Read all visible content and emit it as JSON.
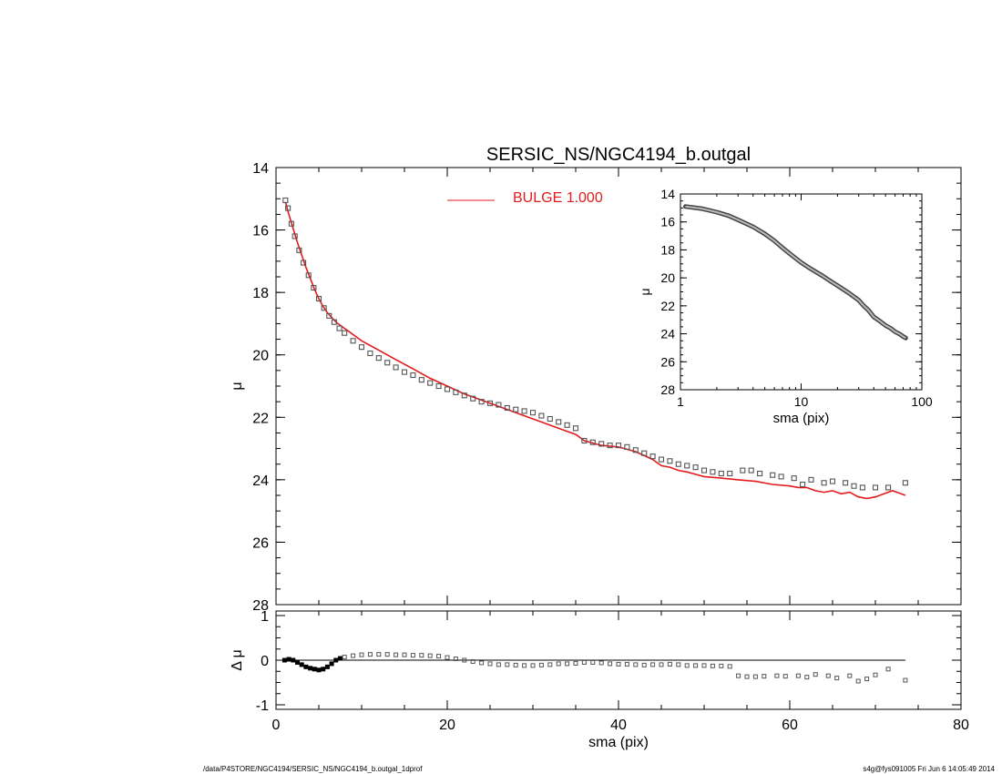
{
  "footer": {
    "left": "/data/P4STORE/NGC4194/SERSIC_NS/NGC4194_b.outgal_1dprof",
    "right": "s4g@fys091005  Fri Jun  6 14:05:49 2014"
  },
  "chart_data": [
    {
      "id": "main",
      "type": "scatter",
      "title": "SERSIC_NS/NGC4194_b.outgal",
      "xlabel": "",
      "ylabel": "μ",
      "xlim": [
        0,
        80
      ],
      "ylim": [
        28,
        14
      ],
      "y_inverted": true,
      "xticks": [
        0,
        20,
        40,
        60,
        80
      ],
      "yticks": [
        14,
        16,
        18,
        20,
        22,
        24,
        26,
        28
      ],
      "ytick_labels": [
        "14",
        "16",
        "18",
        "20",
        "22",
        "24",
        "26",
        "28"
      ],
      "legend": {
        "placement": "top-center",
        "entries": [
          {
            "label": "BULGE  1.000",
            "color": "#e41a1c"
          }
        ]
      },
      "colors": {
        "data": "#555555",
        "model": "#e41a1c"
      },
      "series": [
        {
          "name": "",
          "kind": "points",
          "x": [
            1.1,
            1.4,
            1.8,
            2.2,
            2.7,
            3.2,
            3.8,
            4.4,
            5.0,
            5.6,
            6.2,
            6.8,
            7.4,
            8.0,
            9.0,
            10.0,
            11.0,
            12.0,
            13.0,
            14.0,
            15.0,
            16.0,
            17.0,
            18.0,
            19.0,
            20.0,
            21.0,
            22.0,
            23.0,
            24.0,
            25.0,
            26.0,
            27.0,
            28.0,
            29.0,
            30.0,
            31.0,
            32.0,
            33.0,
            34.0,
            35.0,
            36.0,
            37.0,
            38.0,
            39.0,
            40.0,
            41.0,
            42.0,
            43.0,
            44.0,
            45.0,
            46.0,
            47.0,
            48.0,
            49.0,
            50.0,
            51.0,
            52.0,
            53.0,
            54.5,
            55.5,
            56.5,
            58.0,
            59.0,
            60.5,
            61.5,
            62.5,
            64.0,
            65.0,
            66.5,
            67.5,
            68.5,
            70.0,
            71.5,
            73.5
          ],
          "y": [
            15.05,
            15.3,
            15.8,
            16.2,
            16.65,
            17.05,
            17.45,
            17.85,
            18.2,
            18.5,
            18.75,
            18.95,
            19.15,
            19.3,
            19.55,
            19.75,
            19.95,
            20.1,
            20.25,
            20.4,
            20.55,
            20.65,
            20.8,
            20.9,
            21.0,
            21.1,
            21.2,
            21.3,
            21.4,
            21.5,
            21.55,
            21.6,
            21.7,
            21.75,
            21.8,
            21.85,
            21.95,
            22.05,
            22.15,
            22.25,
            22.35,
            22.75,
            22.8,
            22.85,
            22.9,
            22.9,
            22.95,
            23.05,
            23.15,
            23.25,
            23.35,
            23.4,
            23.5,
            23.55,
            23.6,
            23.7,
            23.75,
            23.8,
            23.8,
            23.7,
            23.7,
            23.8,
            23.85,
            23.9,
            23.95,
            24.15,
            24.0,
            24.1,
            24.05,
            24.1,
            24.2,
            24.25,
            24.25,
            24.25,
            24.1
          ]
        },
        {
          "name": "BULGE  1.000",
          "kind": "line",
          "x": [
            1.1,
            1.5,
            2.0,
            2.5,
            3.0,
            3.5,
            4.0,
            4.5,
            5.0,
            5.5,
            6.0,
            6.5,
            7.0,
            7.5,
            8.0,
            9.0,
            10.0,
            12.0,
            14.0,
            16.0,
            18.0,
            20.0,
            22.0,
            24.0,
            26.0,
            28.0,
            30.0,
            32.0,
            34.0,
            35.0,
            36.0,
            38.0,
            40.0,
            42.0,
            44.0,
            45.0,
            46.0,
            47.0,
            48.0,
            50.0,
            52.0,
            54.0,
            56.0,
            58.0,
            60.0,
            61.0,
            62.0,
            63.0,
            64.0,
            65.0,
            66.0,
            67.0,
            68.0,
            69.0,
            70.0,
            71.0,
            72.0,
            73.0,
            73.5
          ],
          "y": [
            15.1,
            15.5,
            15.95,
            16.4,
            16.8,
            17.2,
            17.55,
            17.9,
            18.2,
            18.45,
            18.65,
            18.8,
            18.95,
            19.05,
            19.15,
            19.35,
            19.55,
            19.85,
            20.15,
            20.45,
            20.75,
            21.0,
            21.25,
            21.45,
            21.65,
            21.85,
            22.05,
            22.25,
            22.45,
            22.55,
            22.75,
            22.9,
            22.95,
            23.1,
            23.35,
            23.55,
            23.6,
            23.7,
            23.75,
            23.9,
            23.95,
            24.0,
            24.05,
            24.15,
            24.2,
            24.25,
            24.25,
            24.35,
            24.4,
            24.35,
            24.45,
            24.4,
            24.55,
            24.6,
            24.55,
            24.45,
            24.35,
            24.45,
            24.5
          ]
        }
      ]
    },
    {
      "id": "inset",
      "type": "line",
      "xlabel": "sma (pix)",
      "ylabel": "μ",
      "x_scale": "log",
      "xlim": [
        1,
        100
      ],
      "ylim": [
        28,
        14
      ],
      "y_inverted": true,
      "xticks": [
        1,
        10,
        100
      ],
      "yticks": [
        14,
        16,
        18,
        20,
        22,
        24,
        26,
        28
      ],
      "ytick_labels": [
        "14",
        "16",
        "18",
        "20",
        "22",
        "24",
        "26",
        "28"
      ],
      "series": [
        {
          "name": "",
          "kind": "band",
          "x": [
            1.1,
            1.5,
            2.0,
            2.5,
            3.0,
            4.0,
            5.0,
            6.0,
            7.0,
            8.0,
            10.0,
            12.0,
            15.0,
            18.0,
            20.0,
            25.0,
            30.0,
            33.0,
            36.0,
            40.0,
            45.0,
            50.0,
            55.0,
            60.0,
            65.0,
            70.0,
            73.5
          ],
          "y": [
            14.9,
            15.05,
            15.3,
            15.55,
            15.85,
            16.35,
            16.85,
            17.35,
            17.85,
            18.25,
            18.9,
            19.35,
            19.85,
            20.3,
            20.55,
            21.1,
            21.6,
            22.0,
            22.3,
            22.8,
            23.1,
            23.4,
            23.6,
            23.85,
            24.0,
            24.2,
            24.3
          ]
        }
      ]
    },
    {
      "id": "residual",
      "type": "scatter",
      "xlabel": "sma (pix)",
      "ylabel": "Δ μ",
      "xlim": [
        0,
        80
      ],
      "ylim": [
        -1,
        1
      ],
      "xticks": [
        0,
        20,
        40,
        60,
        80
      ],
      "yticks": [
        -1,
        0,
        1
      ],
      "ytick_labels": [
        "-1",
        "0",
        "1"
      ],
      "reference_line": 0,
      "series": [
        {
          "name": "",
          "kind": "points",
          "x": [
            1.0,
            1.5,
            2.0,
            2.5,
            3.0,
            3.5,
            4.0,
            4.5,
            5.0,
            5.5,
            6.0,
            6.5,
            7.0,
            7.5,
            8.0,
            9.0,
            10.0,
            11.0,
            12.0,
            13.0,
            14.0,
            15.0,
            16.0,
            17.0,
            18.0,
            19.0,
            20.0,
            21.0,
            22.0,
            23.0,
            24.0,
            25.0,
            26.0,
            27.0,
            28.0,
            29.0,
            30.0,
            31.0,
            32.0,
            33.0,
            34.0,
            35.0,
            36.0,
            37.0,
            38.0,
            39.0,
            40.0,
            41.0,
            42.0,
            43.0,
            44.0,
            45.0,
            46.0,
            47.0,
            48.0,
            49.0,
            50.0,
            51.0,
            52.0,
            53.0,
            54.0,
            55.0,
            56.0,
            57.0,
            58.5,
            59.5,
            61.0,
            62.0,
            63.0,
            64.5,
            65.5,
            67.0,
            68.0,
            69.0,
            70.0,
            71.5,
            73.5
          ],
          "y": [
            0.0,
            0.02,
            0.0,
            -0.05,
            -0.1,
            -0.15,
            -0.18,
            -0.2,
            -0.22,
            -0.2,
            -0.15,
            -0.08,
            0.0,
            0.04,
            0.07,
            0.1,
            0.12,
            0.13,
            0.13,
            0.13,
            0.12,
            0.12,
            0.11,
            0.11,
            0.1,
            0.09,
            0.06,
            0.03,
            0.0,
            -0.03,
            -0.06,
            -0.08,
            -0.1,
            -0.1,
            -0.11,
            -0.12,
            -0.12,
            -0.11,
            -0.1,
            -0.08,
            -0.08,
            -0.07,
            -0.05,
            -0.05,
            -0.06,
            -0.08,
            -0.09,
            -0.09,
            -0.1,
            -0.11,
            -0.1,
            -0.1,
            -0.09,
            -0.1,
            -0.12,
            -0.12,
            -0.12,
            -0.13,
            -0.13,
            -0.14,
            -0.35,
            -0.37,
            -0.37,
            -0.36,
            -0.35,
            -0.36,
            -0.35,
            -0.38,
            -0.32,
            -0.35,
            -0.4,
            -0.35,
            -0.47,
            -0.42,
            -0.33,
            -0.2,
            -0.45
          ]
        }
      ]
    }
  ]
}
